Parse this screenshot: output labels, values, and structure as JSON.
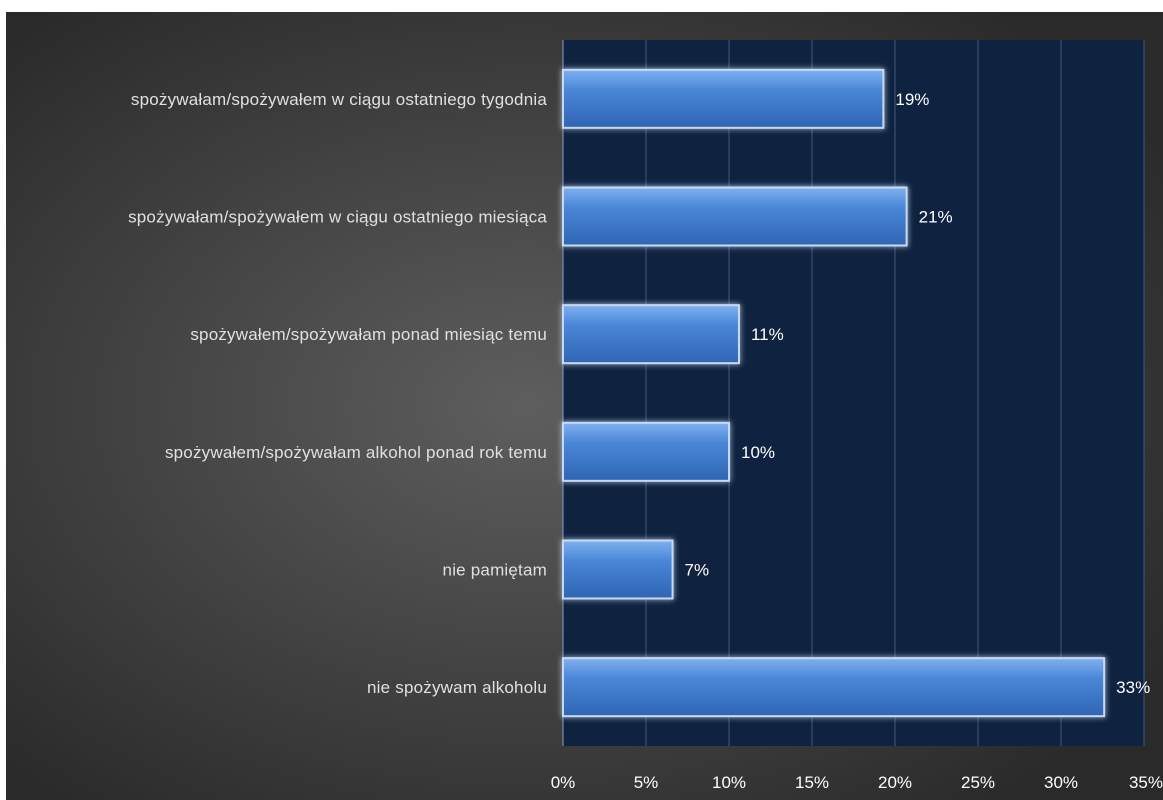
{
  "chart_data": {
    "type": "bar",
    "orientation": "horizontal",
    "categories": [
      "spożywałam/spożywałem w ciągu ostatniego tygodnia",
      "spożywałam/spożywałem w ciągu ostatniego miesiąca",
      "spożywałem/spożywałam ponad miesiąc temu",
      "spożywałem/spożywałam alkohol ponad rok temu",
      "nie pamiętam",
      "nie spożywam alkoholu"
    ],
    "values": [
      19.3,
      20.7,
      10.6,
      10.0,
      6.6,
      32.6
    ],
    "value_labels": [
      "19%",
      "21%",
      "11%",
      "10%",
      "7%",
      "33%"
    ],
    "x_ticks": [
      "0%",
      "5%",
      "10%",
      "15%",
      "20%",
      "25%",
      "30%",
      "35%"
    ],
    "xlim": [
      0,
      35
    ],
    "grid": true,
    "legend": "none",
    "colors": {
      "bar_top": "#7fb1f0",
      "bar_mid": "#4a86d6",
      "bar_bottom": "#2f65b4",
      "bar_border": "#c9d9ee",
      "plot_bg": "#0f2340",
      "grid": "#3d5a80",
      "bg_left": "#2a2a2a",
      "bg_mid": "#5e5e5e"
    }
  }
}
